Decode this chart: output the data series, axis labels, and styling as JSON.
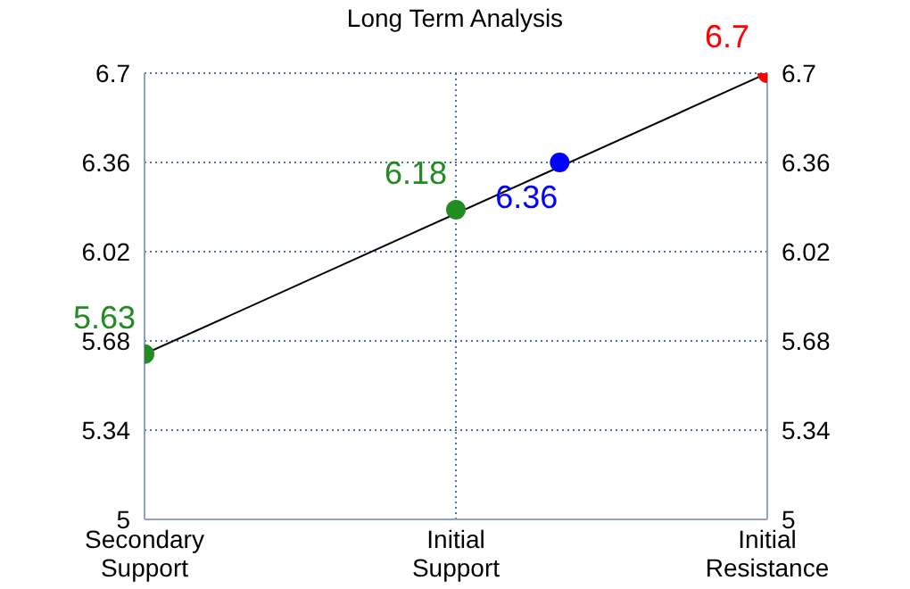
{
  "chart_data": {
    "type": "scatter",
    "title": "Long Term Analysis",
    "categories": [
      "Secondary Support",
      null,
      null,
      "Initial Support",
      null,
      null,
      "Initial Resistance"
    ],
    "ylim": [
      5,
      6.7
    ],
    "yticks": [
      5,
      5.34,
      5.68,
      6.02,
      6.36,
      6.7
    ],
    "y2lim": [
      5,
      6.7
    ],
    "y2ticks": [
      5,
      5.34,
      5.68,
      6.02,
      6.36,
      6.7
    ],
    "grid": true,
    "marker": "circle",
    "series": [
      {
        "type": "line",
        "color": "#000000",
        "values": [
          5.63,
          null,
          null,
          null,
          null,
          null,
          6.7
        ],
        "marker": "none"
      },
      {
        "color": "#228b22",
        "values": [
          5.63,
          null,
          null,
          6.18,
          null,
          null,
          null
        ],
        "value_labels": [
          "5.63",
          null,
          null,
          "6.18",
          null,
          null,
          null
        ]
      },
      {
        "color": "#0000ff",
        "values": [
          null,
          null,
          null,
          null,
          6.36,
          null,
          null
        ],
        "value_labels": [
          null,
          null,
          null,
          null,
          "6.36",
          null,
          null
        ]
      },
      {
        "color": "#ff0000",
        "values": [
          null,
          null,
          null,
          null,
          null,
          null,
          6.7
        ],
        "value_labels": [
          null,
          null,
          null,
          null,
          null,
          null,
          "6.7"
        ]
      }
    ]
  }
}
